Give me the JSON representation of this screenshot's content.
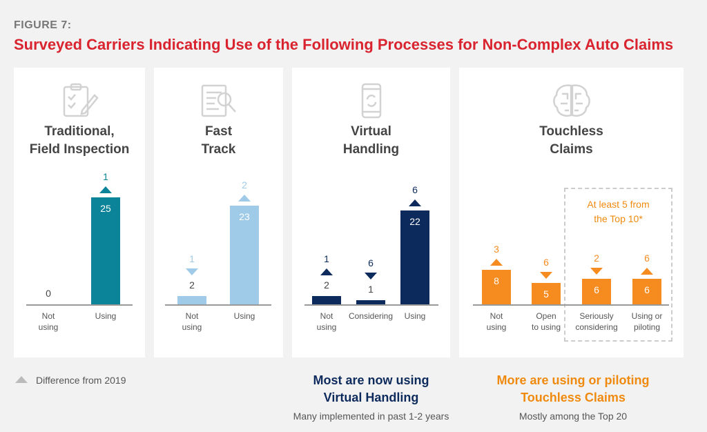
{
  "figure_label": "FIGURE 7:",
  "title": "Surveyed Carriers Indicating Use of the Following Processes for Non-Complex Auto Claims",
  "legend_text": "Difference from 2019",
  "colors": {
    "teal": "#0b8399",
    "lightblue": "#9fcbe9",
    "navy": "#0d2a5c",
    "orange": "#f68b1f",
    "red": "#d9232e"
  },
  "chart_data": [
    {
      "type": "bar",
      "title_lines": [
        "Traditional,",
        "Field Inspection"
      ],
      "icon": "clipboard-icon",
      "categories": [
        [
          "Not",
          "using"
        ],
        [
          "Using"
        ]
      ],
      "values": [
        0,
        25
      ],
      "diff_2019": [
        null,
        1
      ],
      "diff_direction": [
        null,
        "up"
      ]
    },
    {
      "type": "bar",
      "title_lines": [
        "Fast",
        "Track"
      ],
      "icon": "document-search-icon",
      "categories": [
        [
          "Not",
          "using"
        ],
        [
          "Using"
        ]
      ],
      "values": [
        2,
        23
      ],
      "diff_2019": [
        1,
        2
      ],
      "diff_direction": [
        "down",
        "up"
      ]
    },
    {
      "type": "bar",
      "title_lines": [
        "Virtual",
        "Handling"
      ],
      "icon": "phone-sync-icon",
      "categories": [
        [
          "Not",
          "using"
        ],
        [
          "Considering"
        ],
        [
          "Using"
        ]
      ],
      "values": [
        2,
        1,
        22
      ],
      "diff_2019": [
        1,
        6,
        6
      ],
      "diff_direction": [
        "up",
        "down",
        "up"
      ]
    },
    {
      "type": "bar",
      "title_lines": [
        "Touchless",
        "Claims"
      ],
      "icon": "brain-icon",
      "categories": [
        [
          "Not",
          "using"
        ],
        [
          "Open",
          "to using"
        ],
        [
          "Seriously",
          "considering"
        ],
        [
          "Using or",
          "piloting"
        ]
      ],
      "values": [
        8,
        5,
        6,
        6
      ],
      "diff_2019": [
        3,
        6,
        2,
        6
      ],
      "diff_direction": [
        "up",
        "down",
        "down",
        "up"
      ],
      "annotation_lines": [
        "At least 5 from",
        "the  Top 10*"
      ]
    }
  ],
  "notes": [
    {
      "heading_lines": [
        "Most are now using",
        "Virtual Handling"
      ],
      "sub": "Many implemented in past 1-2 years"
    },
    {
      "heading_lines": [
        "More are using or piloting",
        "Touchless Claims"
      ],
      "sub": "Mostly among the Top 20"
    }
  ]
}
